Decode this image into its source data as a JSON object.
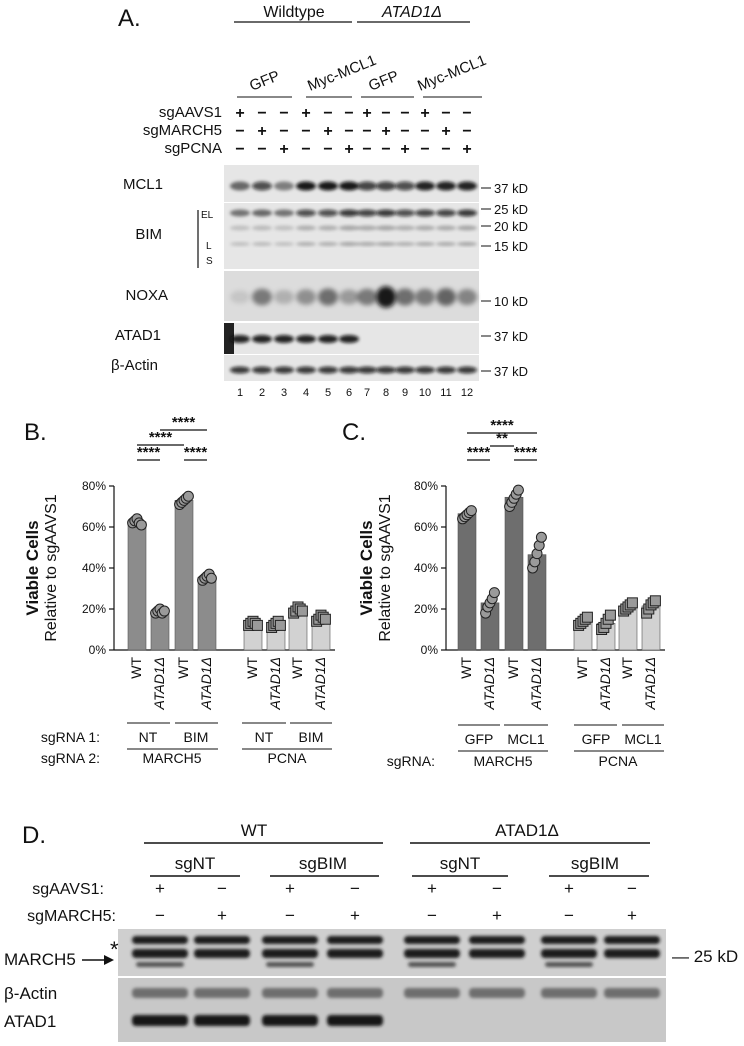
{
  "panelA": {
    "letter": "A.",
    "groups": [
      "Wildtype",
      "ATAD1Δ"
    ],
    "constructs": [
      "GFP",
      "Myc-MCL1",
      "GFP",
      "Myc-MCL1"
    ],
    "sg_rows": [
      {
        "label": "sgAAVS1",
        "signs": [
          "+",
          "−",
          "−",
          "+",
          "−",
          "−",
          "+",
          "−",
          "−",
          "+",
          "−",
          "−"
        ]
      },
      {
        "label": "sgMARCH5",
        "signs": [
          "−",
          "+",
          "−",
          "−",
          "+",
          "−",
          "−",
          "+",
          "−",
          "−",
          "+",
          "−"
        ]
      },
      {
        "label": "sgPCNA",
        "signs": [
          "−",
          "−",
          "+",
          "−",
          "−",
          "+",
          "−",
          "−",
          "+",
          "−",
          "−",
          "+"
        ]
      }
    ],
    "blots": [
      {
        "label": "MCL1",
        "band_intensity": [
          0.55,
          0.7,
          0.45,
          0.95,
          0.95,
          0.95,
          0.75,
          0.75,
          0.7,
          0.9,
          0.9,
          0.9
        ]
      },
      {
        "label": "BIM",
        "band_intensity": [
          0.5,
          0.55,
          0.5,
          0.7,
          0.7,
          0.8,
          0.75,
          0.8,
          0.7,
          0.75,
          0.75,
          0.8
        ]
      },
      {
        "label": "NOXA",
        "band_intensity": [
          0.1,
          0.45,
          0.2,
          0.35,
          0.5,
          0.3,
          0.45,
          0.95,
          0.5,
          0.45,
          0.55,
          0.4
        ]
      },
      {
        "label": "ATAD1",
        "band_intensity": [
          0.9,
          0.9,
          0.9,
          0.9,
          0.9,
          0.9,
          0,
          0,
          0,
          0,
          0,
          0
        ]
      },
      {
        "label": "β-Actin",
        "band_intensity": [
          0.8,
          0.8,
          0.8,
          0.8,
          0.8,
          0.8,
          0.8,
          0.8,
          0.8,
          0.8,
          0.8,
          0.8
        ]
      }
    ],
    "bim_isoforms": [
      "EL",
      "L",
      "S"
    ],
    "mw_markers": [
      "37 kD",
      "25 kD",
      "20 kD",
      "15 kD",
      "10 kD",
      "37 kD",
      "37 kD"
    ],
    "lanes": [
      "1",
      "2",
      "3",
      "4",
      "5",
      "6",
      "7",
      "8",
      "9",
      "10",
      "11",
      "12"
    ]
  },
  "panelB": {
    "letter": "B.",
    "sig": [
      "****",
      "****",
      "****",
      "****"
    ],
    "sgrna1_label": "sgRNA 1:",
    "sgrna2_label": "sgRNA 2:",
    "sgrna1": [
      "NT",
      "BIM",
      "NT",
      "BIM"
    ],
    "sgrna2": [
      "MARCH5",
      "PCNA"
    ]
  },
  "panelC": {
    "letter": "C.",
    "sig": [
      "****",
      "**",
      "****",
      "****"
    ],
    "sgrna_label": "sgRNA:",
    "sgrna1": [
      "GFP",
      "MCL1",
      "GFP",
      "MCL1"
    ],
    "sgrna2": [
      "MARCH5",
      "PCNA"
    ]
  },
  "chart_data": [
    {
      "type": "bar",
      "ylabel": "Viable Cells",
      "ylabel2": "Relative to sgAAVS1",
      "yticks": [
        "0%",
        "20%",
        "40%",
        "60%",
        "80%"
      ],
      "ylim": [
        0,
        80
      ],
      "categories": [
        "WT",
        "ATAD1Δ",
        "WT",
        "ATAD1Δ",
        "WT",
        "ATAD1Δ",
        "WT",
        "ATAD1Δ"
      ],
      "values": [
        62.5,
        19,
        73,
        35.5,
        13,
        12.5,
        19.5,
        16
      ],
      "points": [
        [
          62,
          63,
          64,
          62,
          61
        ],
        [
          18,
          19,
          20,
          18,
          19
        ],
        [
          71,
          72,
          73,
          74,
          75
        ],
        [
          34,
          35,
          36,
          37,
          35
        ],
        [
          12,
          13,
          14,
          13,
          12
        ],
        [
          11,
          12,
          13,
          14,
          12
        ],
        [
          18,
          19,
          21,
          20,
          19
        ],
        [
          14,
          15,
          17,
          16,
          15
        ]
      ],
      "bar_colors": [
        "#8c8c8c",
        "#8c8c8c",
        "#8c8c8c",
        "#8c8c8c",
        "#d2d2d2",
        "#d2d2d2",
        "#d2d2d2",
        "#d2d2d2"
      ]
    },
    {
      "type": "bar",
      "ylabel": "Viable Cells",
      "ylabel2": "Relative to sgAAVS1",
      "yticks": [
        "0%",
        "20%",
        "40%",
        "60%",
        "80%"
      ],
      "ylim": [
        0,
        80
      ],
      "categories": [
        "WT",
        "ATAD1Δ",
        "WT",
        "ATAD1Δ",
        "WT",
        "ATAD1Δ",
        "WT",
        "ATAD1Δ"
      ],
      "values": [
        66.5,
        23,
        74.5,
        46.5,
        14.5,
        13,
        21,
        21.5
      ],
      "points": [
        [
          64,
          65,
          66,
          67,
          68
        ],
        [
          18,
          21,
          23,
          25,
          28
        ],
        [
          70,
          72,
          74,
          76,
          78
        ],
        [
          40,
          43,
          47,
          51,
          55
        ],
        [
          12,
          13,
          14,
          15,
          16
        ],
        [
          10,
          11,
          13,
          15,
          17
        ],
        [
          19,
          20,
          21,
          22,
          23
        ],
        [
          18,
          20,
          22,
          23,
          24
        ]
      ],
      "bar_colors": [
        "#6e6e6e",
        "#6e6e6e",
        "#6e6e6e",
        "#6e6e6e",
        "#d2d2d2",
        "#d2d2d2",
        "#d2d2d2",
        "#d2d2d2"
      ]
    }
  ],
  "panelD": {
    "letter": "D.",
    "groups": [
      "WT",
      "ATAD1Δ"
    ],
    "subgroups": [
      "sgNT",
      "sgBIM",
      "sgNT",
      "sgBIM"
    ],
    "sg_rows": [
      {
        "label": "sgAAVS1:",
        "signs": [
          "+",
          "−",
          "+",
          "−",
          "+",
          "−",
          "+",
          "−"
        ]
      },
      {
        "label": "sgMARCH5:",
        "signs": [
          "−",
          "+",
          "−",
          "+",
          "−",
          "+",
          "−",
          "+"
        ]
      }
    ],
    "blot_labels": [
      "MARCH5",
      "β-Actin",
      "ATAD1"
    ],
    "asterisk": "*",
    "mw": "— 25 kD"
  }
}
